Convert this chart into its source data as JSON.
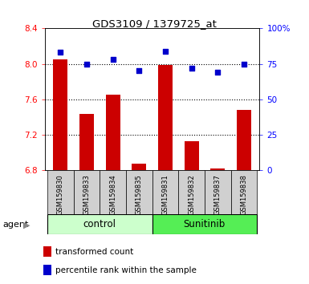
{
  "title": "GDS3109 / 1379725_at",
  "samples": [
    "GSM159830",
    "GSM159833",
    "GSM159834",
    "GSM159835",
    "GSM159831",
    "GSM159832",
    "GSM159837",
    "GSM159838"
  ],
  "red_values": [
    8.05,
    7.44,
    7.65,
    6.88,
    7.99,
    7.13,
    6.82,
    7.48
  ],
  "blue_values": [
    83,
    75,
    78,
    70,
    84,
    72,
    69,
    75
  ],
  "groups": [
    {
      "label": "control",
      "start": 0,
      "end": 4,
      "color": "#ccffcc"
    },
    {
      "label": "Sunitinib",
      "start": 4,
      "end": 8,
      "color": "#55ee55"
    }
  ],
  "ylim_left": [
    6.8,
    8.4
  ],
  "ylim_right": [
    0,
    100
  ],
  "yticks_left": [
    6.8,
    7.2,
    7.6,
    8.0,
    8.4
  ],
  "yticks_right": [
    0,
    25,
    50,
    75,
    100
  ],
  "ytick_labels_right": [
    "0",
    "25",
    "50",
    "75",
    "100%"
  ],
  "grid_values": [
    8.0,
    7.6,
    7.2
  ],
  "bar_color": "#cc0000",
  "dot_color": "#0000cc",
  "agent_label": "agent",
  "legend_red": "transformed count",
  "legend_blue": "percentile rank within the sample",
  "bar_width": 0.55,
  "plot_bg_color": "#ffffff",
  "tick_bg_color": "#d8d8d8",
  "control_color": "#ccffcc",
  "sunitinib_color": "#55ee55"
}
